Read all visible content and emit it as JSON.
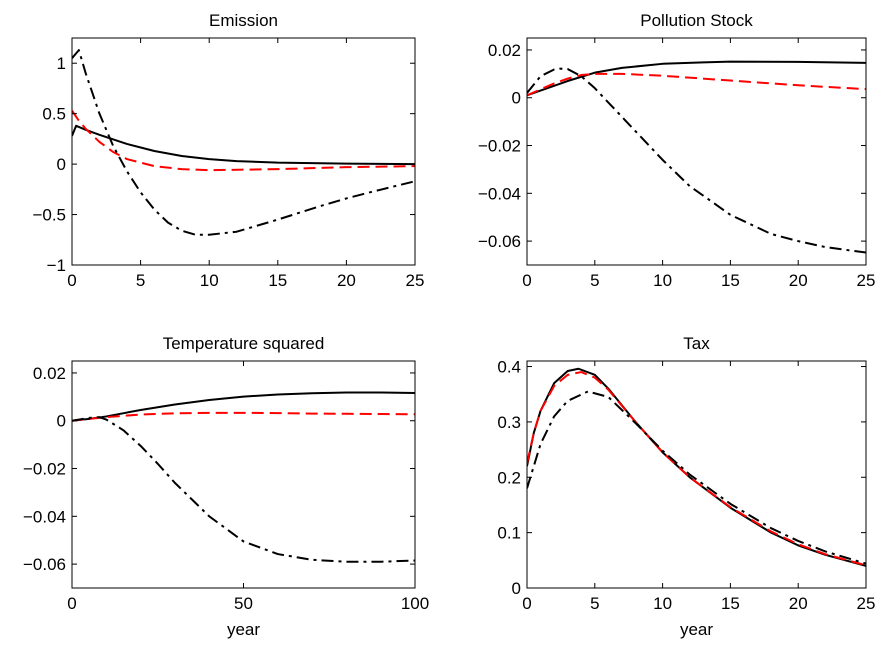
{
  "chart_data": [
    {
      "type": "line",
      "title": "Emission",
      "xlabel": "",
      "xlim": [
        0,
        25
      ],
      "ylim": [
        -1,
        1.25
      ],
      "xticks": [
        0,
        5,
        10,
        15,
        20,
        25
      ],
      "xtick_labels": [
        "0",
        "5",
        "10",
        "15",
        "20",
        "25"
      ],
      "yticks": [
        -1,
        -0.5,
        0,
        0.5,
        1
      ],
      "ytick_labels": [
        "−1",
        "−0.5",
        "0",
        "0.5",
        "1"
      ],
      "grid": false,
      "series": [
        {
          "color": "#000000",
          "style": "solid",
          "x": [
            0,
            0.3,
            1,
            2,
            4,
            6,
            8,
            10,
            12,
            15,
            20,
            25
          ],
          "y": [
            0.28,
            0.38,
            0.34,
            0.29,
            0.2,
            0.13,
            0.08,
            0.05,
            0.03,
            0.015,
            0.005,
            0.0
          ]
        },
        {
          "color": "#ff0000",
          "style": "dashed",
          "x": [
            0,
            0.5,
            1,
            2,
            3,
            4,
            6,
            8,
            10,
            15,
            20,
            25
          ],
          "y": [
            0.53,
            0.43,
            0.35,
            0.22,
            0.12,
            0.05,
            -0.02,
            -0.05,
            -0.06,
            -0.05,
            -0.03,
            -0.02
          ]
        },
        {
          "color": "#000000",
          "style": "dashdot",
          "x": [
            0,
            0.5,
            1,
            2,
            3,
            4,
            5,
            6,
            7,
            8,
            9,
            10,
            12,
            15,
            18,
            20,
            22,
            25
          ],
          "y": [
            1.05,
            1.13,
            0.9,
            0.5,
            0.18,
            -0.07,
            -0.28,
            -0.45,
            -0.58,
            -0.66,
            -0.7,
            -0.7,
            -0.67,
            -0.55,
            -0.42,
            -0.34,
            -0.27,
            -0.17
          ]
        }
      ]
    },
    {
      "type": "line",
      "title": "Pollution Stock",
      "xlabel": "",
      "xlim": [
        0,
        25
      ],
      "ylim": [
        -0.07,
        0.025
      ],
      "xticks": [
        0,
        5,
        10,
        15,
        20,
        25
      ],
      "xtick_labels": [
        "0",
        "5",
        "10",
        "15",
        "20",
        "25"
      ],
      "yticks": [
        -0.06,
        -0.04,
        -0.02,
        0,
        0.02
      ],
      "ytick_labels": [
        "−0.06",
        "−0.04",
        "−0.02",
        "0",
        "0.02"
      ],
      "grid": false,
      "series": [
        {
          "color": "#000000",
          "style": "solid",
          "x": [
            0,
            1,
            2,
            3,
            5,
            7,
            10,
            13,
            15,
            20,
            25
          ],
          "y": [
            0.001,
            0.003,
            0.005,
            0.007,
            0.0105,
            0.0125,
            0.0142,
            0.0148,
            0.0151,
            0.015,
            0.0146
          ]
        },
        {
          "color": "#ff0000",
          "style": "dashed",
          "x": [
            0,
            1,
            2,
            3,
            4,
            5,
            7,
            10,
            15,
            20,
            25
          ],
          "y": [
            0.001,
            0.0035,
            0.006,
            0.008,
            0.0095,
            0.01,
            0.01,
            0.0092,
            0.0072,
            0.0052,
            0.0036
          ]
        },
        {
          "color": "#000000",
          "style": "dashdot",
          "x": [
            0,
            1,
            2,
            2.5,
            3,
            4,
            5,
            6,
            8,
            10,
            12,
            15,
            18,
            20,
            22,
            25
          ],
          "y": [
            0.002,
            0.009,
            0.0118,
            0.0122,
            0.012,
            0.009,
            0.004,
            -0.002,
            -0.014,
            -0.026,
            -0.037,
            -0.049,
            -0.057,
            -0.06,
            -0.0625,
            -0.0648
          ]
        }
      ]
    },
    {
      "type": "line",
      "title": "Temperature squared",
      "xlabel": "year",
      "xlim": [
        0,
        100
      ],
      "ylim": [
        -0.07,
        0.025
      ],
      "xticks": [
        0,
        50,
        100
      ],
      "xtick_labels": [
        "0",
        "50",
        "100"
      ],
      "yticks": [
        -0.06,
        -0.04,
        -0.02,
        0,
        0.02
      ],
      "ytick_labels": [
        "−0.06",
        "−0.04",
        "−0.02",
        "0",
        "0.02"
      ],
      "grid": false,
      "series": [
        {
          "color": "#000000",
          "style": "solid",
          "x": [
            0,
            5,
            10,
            20,
            30,
            40,
            50,
            60,
            70,
            80,
            90,
            100
          ],
          "y": [
            0,
            0.0008,
            0.0018,
            0.0045,
            0.0068,
            0.0087,
            0.0101,
            0.011,
            0.0115,
            0.0118,
            0.0118,
            0.0116
          ]
        },
        {
          "color": "#ff0000",
          "style": "dashed",
          "x": [
            0,
            5,
            10,
            20,
            30,
            40,
            50,
            60,
            70,
            80,
            90,
            100
          ],
          "y": [
            0,
            0.0008,
            0.0015,
            0.0026,
            0.0031,
            0.0033,
            0.0033,
            0.0032,
            0.003,
            0.0029,
            0.0028,
            0.0027
          ]
        },
        {
          "color": "#000000",
          "style": "dashdot",
          "x": [
            0,
            5,
            8,
            10,
            15,
            20,
            25,
            30,
            40,
            50,
            60,
            70,
            80,
            90,
            100
          ],
          "y": [
            0,
            0.0012,
            0.0015,
            0.0005,
            -0.004,
            -0.0105,
            -0.018,
            -0.026,
            -0.04,
            -0.0505,
            -0.0558,
            -0.0582,
            -0.059,
            -0.059,
            -0.0585
          ]
        }
      ]
    },
    {
      "type": "line",
      "title": "Tax",
      "xlabel": "year",
      "xlim": [
        0,
        25
      ],
      "ylim": [
        0,
        0.41
      ],
      "xticks": [
        0,
        5,
        10,
        15,
        20,
        25
      ],
      "xtick_labels": [
        "0",
        "5",
        "10",
        "15",
        "20",
        "25"
      ],
      "yticks": [
        0,
        0.1,
        0.2,
        0.3,
        0.4
      ],
      "ytick_labels": [
        "0",
        "0.1",
        "0.2",
        "0.3",
        "0.4"
      ],
      "grid": false,
      "series": [
        {
          "color": "#000000",
          "style": "solid",
          "x": [
            0,
            0.5,
            1,
            2,
            3,
            3.8,
            5,
            6,
            8,
            10,
            12,
            15,
            18,
            20,
            22,
            25
          ],
          "y": [
            0.22,
            0.28,
            0.32,
            0.37,
            0.392,
            0.396,
            0.385,
            0.36,
            0.3,
            0.245,
            0.2,
            0.145,
            0.1,
            0.077,
            0.06,
            0.04
          ]
        },
        {
          "color": "#ff0000",
          "style": "dashed",
          "x": [
            0,
            0.5,
            1,
            2,
            3,
            4,
            5,
            6,
            8,
            10,
            12,
            15,
            18,
            20,
            22,
            25
          ],
          "y": [
            0.225,
            0.28,
            0.32,
            0.365,
            0.385,
            0.39,
            0.38,
            0.358,
            0.3,
            0.245,
            0.2,
            0.146,
            0.102,
            0.079,
            0.061,
            0.041
          ]
        },
        {
          "color": "#000000",
          "style": "dashdot",
          "x": [
            0,
            0.5,
            1,
            2,
            3,
            4.5,
            6,
            8,
            10,
            12,
            15,
            18,
            20,
            22,
            25
          ],
          "y": [
            0.18,
            0.22,
            0.26,
            0.31,
            0.338,
            0.355,
            0.345,
            0.298,
            0.248,
            0.205,
            0.152,
            0.108,
            0.085,
            0.066,
            0.044
          ]
        }
      ]
    }
  ]
}
